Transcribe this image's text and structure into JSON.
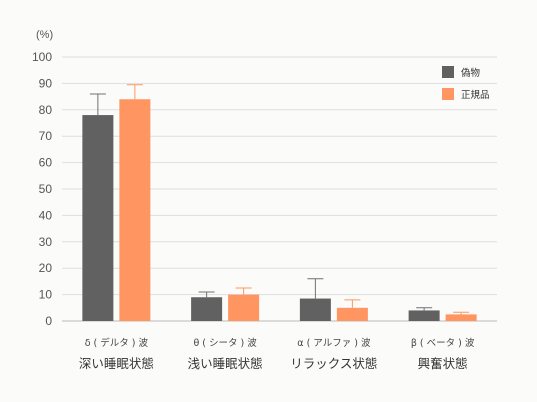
{
  "chart_data": {
    "type": "bar",
    "unit_label": "(%)",
    "categories": [
      {
        "line1": "δ ( デルタ ) 波",
        "line2": "深い睡眠状態"
      },
      {
        "line1": "θ ( シータ ) 波",
        "line2": "浅い睡眠状態"
      },
      {
        "line1": "α ( アルファ ) 波",
        "line2": "リラックス状態"
      },
      {
        "line1": "β ( ベータ ) 波",
        "line2": "興奮状態"
      }
    ],
    "series": [
      {
        "name": "偽物",
        "color": "#616161",
        "values": [
          78,
          9,
          8.5,
          4
        ],
        "errors": [
          8,
          2,
          7.5,
          1
        ]
      },
      {
        "name": "正規品",
        "color": "#ff9560",
        "values": [
          84,
          10,
          5,
          2.5
        ],
        "errors": [
          5.5,
          2.5,
          3,
          0.8
        ]
      }
    ],
    "ylim": [
      0,
      100
    ],
    "yticks": [
      "0",
      "10",
      "20",
      "30",
      "40",
      "50",
      "60",
      "70",
      "80",
      "90",
      "100"
    ],
    "grid": true,
    "legend_position": "top-right",
    "colors": {
      "grid": "#dedede",
      "axis": "#bbbbbb",
      "error_bar_dark": "#707070",
      "error_bar_orange": "#ff9560"
    }
  }
}
